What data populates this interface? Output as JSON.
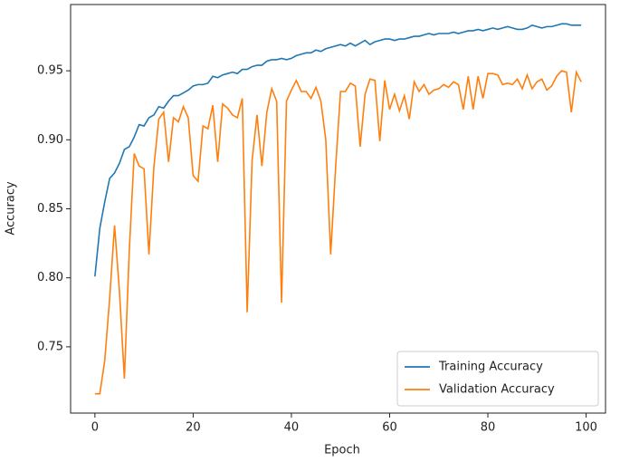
{
  "chart_data": {
    "type": "line",
    "xlabel": "Epoch",
    "ylabel": "Accuracy",
    "x": [
      0,
      1,
      2,
      3,
      4,
      5,
      6,
      7,
      8,
      9,
      10,
      11,
      12,
      13,
      14,
      15,
      16,
      17,
      18,
      19,
      20,
      21,
      22,
      23,
      24,
      25,
      26,
      27,
      28,
      29,
      30,
      31,
      32,
      33,
      34,
      35,
      36,
      37,
      38,
      39,
      40,
      41,
      42,
      43,
      44,
      45,
      46,
      47,
      48,
      49,
      50,
      51,
      52,
      53,
      54,
      55,
      56,
      57,
      58,
      59,
      60,
      61,
      62,
      63,
      64,
      65,
      66,
      67,
      68,
      69,
      70,
      71,
      72,
      73,
      74,
      75,
      76,
      77,
      78,
      79,
      80,
      81,
      82,
      83,
      84,
      85,
      86,
      87,
      88,
      89,
      90,
      91,
      92,
      93,
      94,
      95,
      96,
      97,
      98,
      99
    ],
    "series": [
      {
        "name": "Training Accuracy",
        "color": "#1f77b4",
        "values": [
          0.801,
          0.836,
          0.855,
          0.872,
          0.876,
          0.883,
          0.893,
          0.895,
          0.902,
          0.911,
          0.91,
          0.916,
          0.918,
          0.924,
          0.923,
          0.928,
          0.932,
          0.932,
          0.934,
          0.936,
          0.939,
          0.94,
          0.94,
          0.941,
          0.946,
          0.945,
          0.947,
          0.948,
          0.949,
          0.948,
          0.951,
          0.951,
          0.953,
          0.954,
          0.954,
          0.957,
          0.958,
          0.958,
          0.959,
          0.958,
          0.959,
          0.961,
          0.962,
          0.963,
          0.963,
          0.965,
          0.964,
          0.966,
          0.967,
          0.968,
          0.969,
          0.968,
          0.97,
          0.968,
          0.97,
          0.972,
          0.969,
          0.971,
          0.972,
          0.973,
          0.973,
          0.972,
          0.973,
          0.973,
          0.974,
          0.975,
          0.975,
          0.976,
          0.977,
          0.976,
          0.977,
          0.977,
          0.977,
          0.978,
          0.977,
          0.978,
          0.979,
          0.979,
          0.98,
          0.979,
          0.98,
          0.981,
          0.98,
          0.981,
          0.982,
          0.981,
          0.98,
          0.98,
          0.981,
          0.983,
          0.982,
          0.981,
          0.982,
          0.982,
          0.983,
          0.984,
          0.984,
          0.983,
          0.983,
          0.983
        ]
      },
      {
        "name": "Validation Accuracy",
        "color": "#ff7f0e",
        "values": [
          0.716,
          0.716,
          0.74,
          0.785,
          0.838,
          0.79,
          0.727,
          0.82,
          0.89,
          0.881,
          0.879,
          0.817,
          0.88,
          0.915,
          0.92,
          0.884,
          0.916,
          0.913,
          0.924,
          0.916,
          0.874,
          0.87,
          0.91,
          0.908,
          0.925,
          0.884,
          0.926,
          0.923,
          0.918,
          0.916,
          0.93,
          0.775,
          0.885,
          0.918,
          0.881,
          0.92,
          0.937,
          0.928,
          0.782,
          0.928,
          0.936,
          0.943,
          0.935,
          0.935,
          0.93,
          0.938,
          0.928,
          0.9,
          0.817,
          0.88,
          0.935,
          0.935,
          0.941,
          0.939,
          0.895,
          0.933,
          0.944,
          0.943,
          0.899,
          0.943,
          0.922,
          0.933,
          0.921,
          0.932,
          0.915,
          0.942,
          0.935,
          0.94,
          0.933,
          0.936,
          0.937,
          0.94,
          0.938,
          0.942,
          0.94,
          0.922,
          0.946,
          0.922,
          0.946,
          0.93,
          0.948,
          0.948,
          0.947,
          0.94,
          0.941,
          0.94,
          0.944,
          0.937,
          0.947,
          0.937,
          0.942,
          0.944,
          0.936,
          0.939,
          0.946,
          0.95,
          0.949,
          0.92,
          0.949,
          0.942
        ]
      }
    ],
    "xlim": [
      -4.95,
      103.95
    ],
    "xticks": [
      0,
      20,
      40,
      60,
      80,
      100
    ],
    "ylim": [
      0.702,
      0.998
    ],
    "yticks": [
      0.75,
      {
        "value": 0.8,
        "label": "0.80"
      },
      0.85,
      {
        "value": 0.9,
        "label": "0.90"
      },
      0.95
    ],
    "legend": "lower right"
  }
}
